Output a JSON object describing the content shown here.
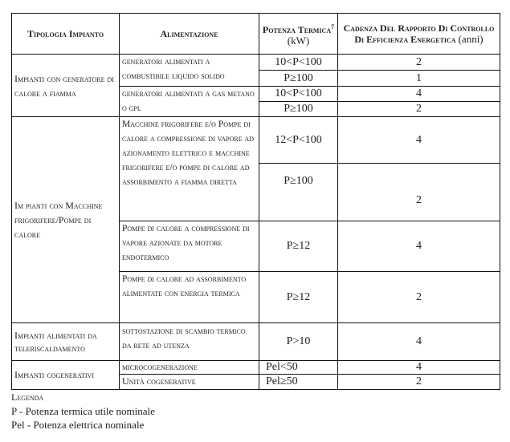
{
  "header": {
    "tipologia": "Tipologia Impianto",
    "alimentazione": "Alimentazione",
    "potenza": "Potenza Termica",
    "potenza_sup": "7",
    "potenza_unit": "(kW)",
    "cadenza": "Cadenza Del Rapporto Di Controllo Di Efficienza Energetica",
    "cadenza_unit": "(anni)"
  },
  "sections": [
    {
      "tipologia": "Impianti con generatore di calore a fiamma",
      "alimentazioni": [
        "generatori alimentati a combustibile liquido solido",
        "generatori alimentati a gas metano o gpl"
      ],
      "rows": [
        {
          "potenza": "10<P<100",
          "cadenza": "2"
        },
        {
          "potenza": "P≥100",
          "cadenza": "1"
        },
        {
          "potenza": "10<P<100",
          "cadenza": "4"
        },
        {
          "potenza": "P≥100",
          "cadenza": "2"
        }
      ]
    },
    {
      "tipologia": "Im pianti con Macchine frigorifere/Pompe di calore",
      "alimentazioni": [
        "Macchine frigorifere e/o Pompe di calore a compressione di vapore ad azionamento elettrico e macchine frigorifere e/o pompe di calore ad assorbimento a fiamma diretta",
        "Pompe di calore a compressione di vapore azionate da motore endotermico",
        "Pompe di calore ad assorbimento alimentate con energia termica"
      ],
      "rows": [
        {
          "potenza": "12<P<100",
          "cadenza": "4"
        },
        {
          "potenza": "P≥100",
          "cadenza": "2"
        },
        {
          "potenza": "P≥12",
          "cadenza": "4"
        },
        {
          "potenza": "P≥12",
          "cadenza": "2"
        }
      ]
    },
    {
      "tipologia": "Impianti alimentati da teleriscaldamento",
      "alimentazioni": [
        "sottostazione di scambio termico da rete ad utenza"
      ],
      "rows": [
        {
          "potenza": "P>10",
          "cadenza": "4"
        }
      ]
    },
    {
      "tipologia": "Impianti cogenerativi",
      "alimentazioni": [
        "microcogenerazione",
        "Unità cogenerative"
      ],
      "rows": [
        {
          "potenza": "Pel<50",
          "cadenza": "4"
        },
        {
          "potenza": "Pel≥50",
          "cadenza": "2"
        }
      ]
    }
  ],
  "legend": {
    "title": "Legenda",
    "items": [
      "P - Potenza termica utile nominale",
      "Pel - Potenza elettrica nominale"
    ]
  }
}
